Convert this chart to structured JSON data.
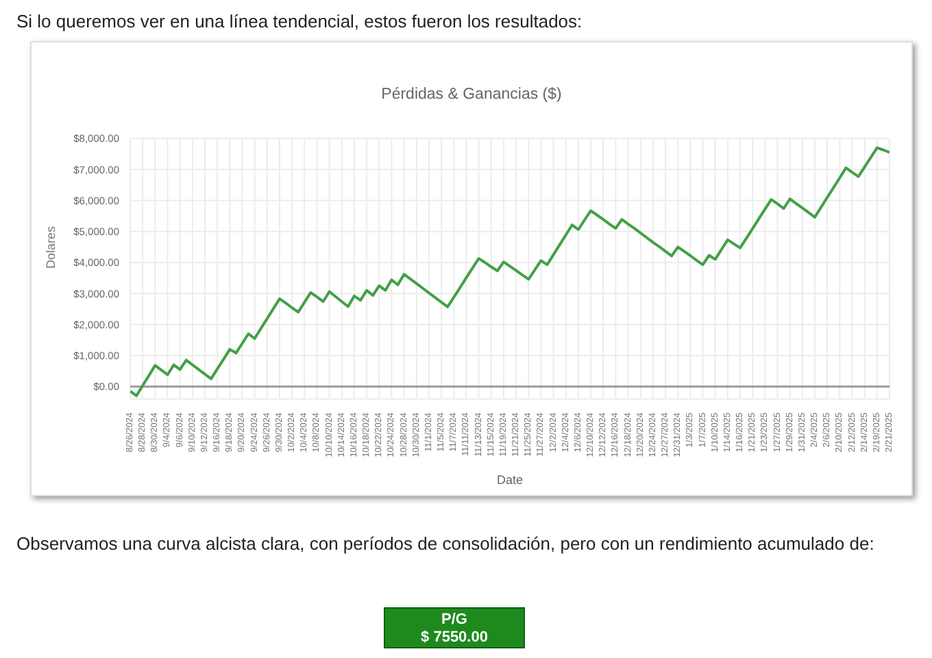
{
  "chart_data": {
    "type": "line",
    "title": "Pérdidas & Ganancias ($)",
    "xlabel": "Date",
    "ylabel": "Dolares",
    "annotations": [
      "Si lo queremos ver en una línea tendencial, estos fueron los resultados:",
      "Observamos una curva alcista clara, con períodos de consolidación, pero con un rendimiento acumulado de:",
      "P/G",
      "$ 7550.00"
    ],
    "categories": [
      "8/26/2024",
      null,
      "8/28/2024",
      null,
      "8/30/2024",
      null,
      "9/4/2024",
      null,
      "9/6/2024",
      null,
      "9/10/2024",
      null,
      "9/12/2024",
      null,
      "9/16/2024",
      null,
      "9/18/2024",
      null,
      "9/20/2024",
      null,
      "9/24/2024",
      null,
      "9/26/2024",
      null,
      "9/30/2024",
      null,
      "10/2/2024",
      null,
      "10/4/2024",
      null,
      "10/8/2024",
      null,
      "10/10/2024",
      null,
      "10/14/2024",
      null,
      "10/16/2024",
      null,
      "10/18/2024",
      null,
      "10/22/2024",
      null,
      "10/24/2024",
      null,
      "10/28/2024",
      null,
      "10/30/2024",
      null,
      "11/1/2024",
      null,
      "11/5/2024",
      null,
      "11/7/2024",
      null,
      "11/11/2024",
      null,
      "11/13/2024",
      null,
      "11/15/2024",
      null,
      "11/19/2024",
      null,
      "11/21/2024",
      null,
      "11/25/2024",
      null,
      "11/27/2024",
      null,
      "12/2/2024",
      null,
      "12/4/2024",
      null,
      "12/6/2024",
      null,
      "12/10/2024",
      null,
      "12/12/2024",
      null,
      "12/16/2024",
      null,
      "12/18/2024",
      null,
      "12/20/2024",
      null,
      "12/24/2024",
      null,
      "12/27/2024",
      null,
      "12/31/2024",
      null,
      "1/3/2025",
      null,
      "1/7/2025",
      null,
      "1/10/2025",
      null,
      "1/14/2025",
      null,
      "1/16/2025",
      null,
      "1/21/2025",
      null,
      "1/23/2025",
      null,
      "1/27/2025",
      null,
      "1/29/2025",
      null,
      "1/31/2025",
      null,
      "2/4/2025",
      null,
      "2/6/2025",
      null,
      "2/10/2025",
      null,
      "2/12/2025",
      null,
      "2/14/2025",
      null,
      "2/19/2025",
      null,
      "2/21/2025"
    ],
    "series": [
      {
        "color": "#43a047",
        "values": [
          -150,
          -300,
          30,
          350,
          680,
          530,
          380,
          700,
          550,
          850,
          700,
          550,
          400,
          250,
          570,
          880,
          1200,
          1080,
          1390,
          1700,
          1550,
          1870,
          2190,
          2510,
          2830,
          2690,
          2540,
          2400,
          2720,
          3030,
          2890,
          2740,
          3060,
          2900,
          2740,
          2580,
          2920,
          2780,
          3100,
          2940,
          3250,
          3100,
          3440,
          3280,
          3620,
          3470,
          3320,
          3170,
          3020,
          2870,
          2720,
          2570,
          2880,
          3190,
          3510,
          3820,
          4130,
          4000,
          3860,
          3730,
          4020,
          3880,
          3740,
          3600,
          3460,
          3760,
          4060,
          3930,
          4250,
          4570,
          4890,
          5210,
          5060,
          5370,
          5670,
          5530,
          5390,
          5240,
          5100,
          5390,
          5240,
          5100,
          4950,
          4800,
          4650,
          4510,
          4360,
          4210,
          4500,
          4360,
          4220,
          4070,
          3930,
          4230,
          4100,
          4420,
          4730,
          4600,
          4470,
          4780,
          5090,
          5410,
          5720,
          6030,
          5890,
          5740,
          6050,
          5900,
          5760,
          5610,
          5460,
          5780,
          6100,
          6410,
          6730,
          7050,
          6910,
          6770,
          7080,
          7390,
          7700,
          7630,
          7550
        ]
      }
    ],
    "ylim": [
      -400,
      8000
    ],
    "yticks": [
      {
        "value": 0,
        "label": "$0.00"
      },
      {
        "value": 1000,
        "label": "$1,000.00"
      },
      {
        "value": 2000,
        "label": "$2,000.00"
      },
      {
        "value": 3000,
        "label": "$3,000.00"
      },
      {
        "value": 4000,
        "label": "$4,000.00"
      },
      {
        "value": 5000,
        "label": "$5,000.00"
      },
      {
        "value": 6000,
        "label": "$6,000.00"
      },
      {
        "value": 7000,
        "label": "$7,000.00"
      },
      {
        "value": 8000,
        "label": "$8,000.00"
      }
    ],
    "ref_lines": [
      {
        "axis": "y",
        "value": 0,
        "color": "#999999"
      }
    ],
    "grid": true,
    "legend": false,
    "marker": "none",
    "line_style": "solid"
  }
}
